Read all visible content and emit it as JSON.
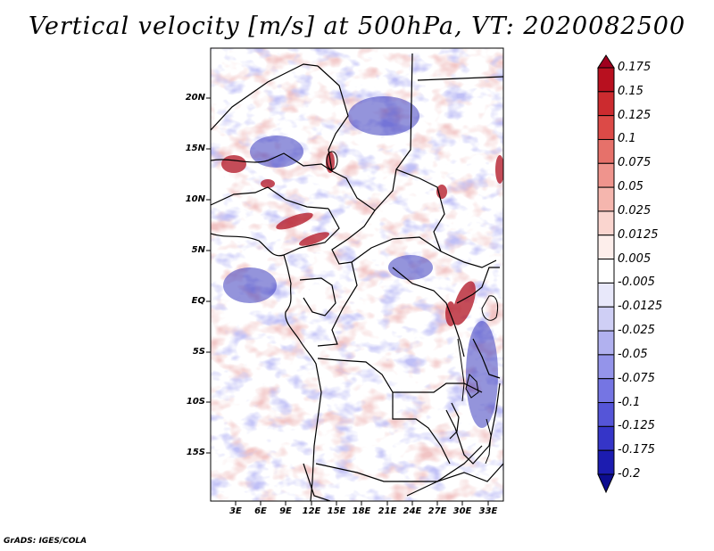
{
  "title": "Vertical velocity [m/s] at 500hPa, VT: 2020082500",
  "credit": "GrADS: IGES/COLA",
  "map": {
    "lat_ticks": [
      "20N",
      "15N",
      "10N",
      "5N",
      "EQ",
      "5S",
      "10S",
      "15S"
    ],
    "lon_ticks": [
      "3E",
      "6E",
      "9E",
      "12E",
      "15E",
      "18E",
      "21E",
      "24E",
      "27E",
      "30E",
      "33E"
    ]
  },
  "colorbar": {
    "labels": [
      "0.175",
      "0.15",
      "0.125",
      "0.1",
      "0.075",
      "0.05",
      "0.025",
      "0.0125",
      "0.005",
      "-0.005",
      "-0.0125",
      "-0.025",
      "-0.05",
      "-0.075",
      "-0.1",
      "-0.125",
      "-0.175",
      "-0.2"
    ],
    "colors": [
      "#a0001e",
      "#b8101f",
      "#cc2b2f",
      "#dc4a47",
      "#e6716a",
      "#ef948d",
      "#f5b6ae",
      "#fad5cf",
      "#fdeeeb",
      "#ffffff",
      "#e8e8fa",
      "#cfcff5",
      "#b1b1ef",
      "#9494ea",
      "#7575e3",
      "#5555d8",
      "#3535c8",
      "#1c1cb0",
      "#0d0d90"
    ]
  }
}
